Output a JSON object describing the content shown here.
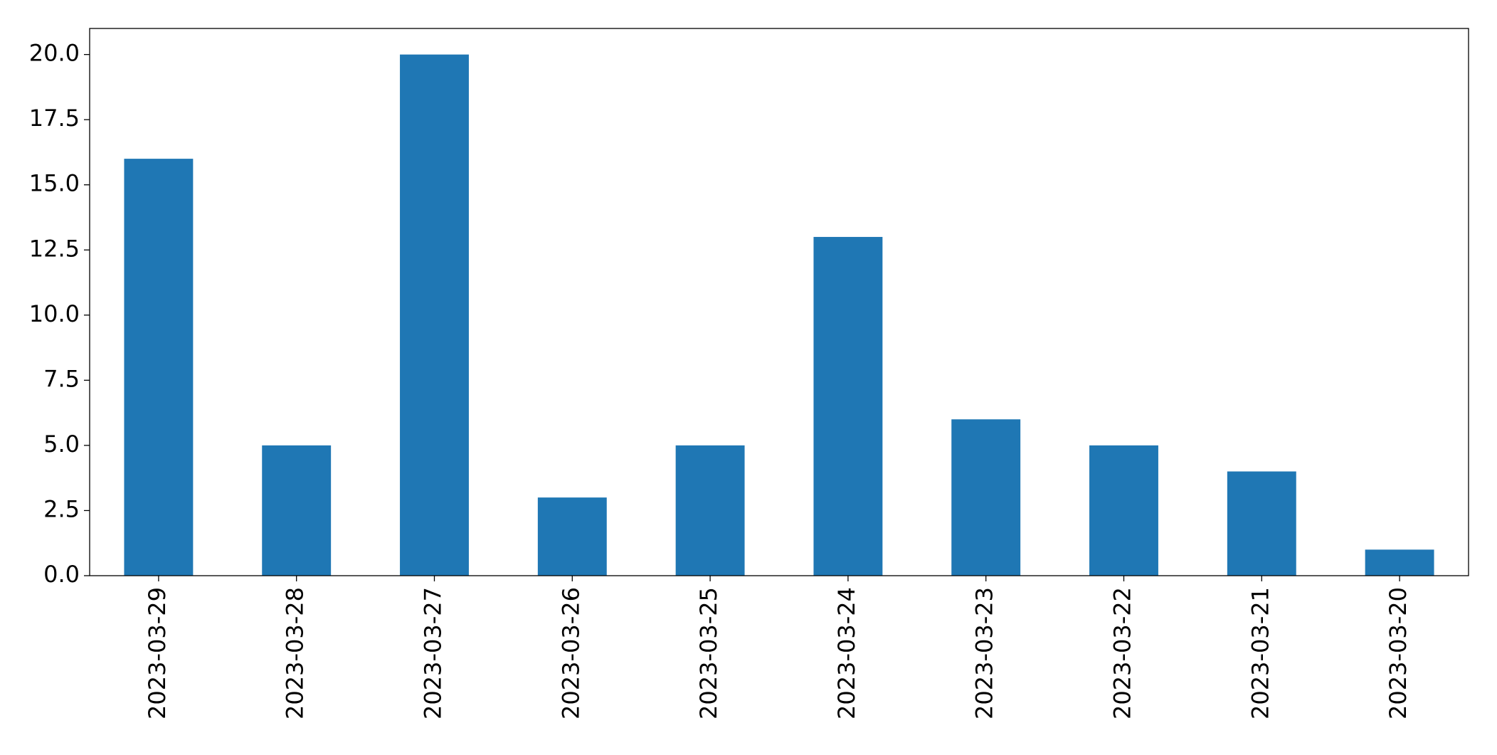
{
  "chart_data": {
    "type": "bar",
    "categories": [
      "2023-03-29",
      "2023-03-28",
      "2023-03-27",
      "2023-03-26",
      "2023-03-25",
      "2023-03-24",
      "2023-03-23",
      "2023-03-22",
      "2023-03-21",
      "2023-03-20"
    ],
    "values": [
      16,
      5,
      20,
      3,
      5,
      13,
      6,
      5,
      4,
      1
    ],
    "color": "#1f77b4",
    "ylim": [
      0,
      21
    ],
    "yticks": [
      {
        "value": 0,
        "label": "0.0"
      },
      {
        "value": 2.5,
        "label": "2.5"
      },
      {
        "value": 5,
        "label": "5.0"
      },
      {
        "value": 7.5,
        "label": "7.5"
      },
      {
        "value": 10,
        "label": "10.0"
      },
      {
        "value": 12.5,
        "label": "12.5"
      },
      {
        "value": 15,
        "label": "15.0"
      },
      {
        "value": 17.5,
        "label": "17.5"
      },
      {
        "value": 20,
        "label": "20.0"
      }
    ],
    "grid": false
  }
}
